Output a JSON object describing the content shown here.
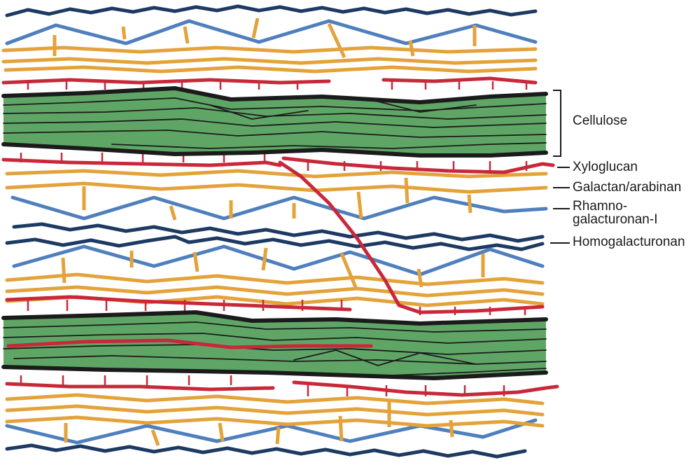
{
  "labels": {
    "cellulose": "Cellulose",
    "xyloglucan": "Xyloglucan",
    "galactan_arabinan": "Galactan/arabinan",
    "rhamnogalacturonan_line1": "Rhamno-",
    "rhamnogalacturonan_line2": "galacturonan-I",
    "homogalacturonan": "Homogalacturonan"
  },
  "colors": {
    "cellulose_fill": "#5fa666",
    "cellulose_border": "#1b1b1b",
    "xyloglucan": "#c8283a",
    "galactan_arabinan": "#e4a23a",
    "rhamnogalacturonan": "#4f7fbd",
    "homogalacturonan": "#1d3a63"
  }
}
